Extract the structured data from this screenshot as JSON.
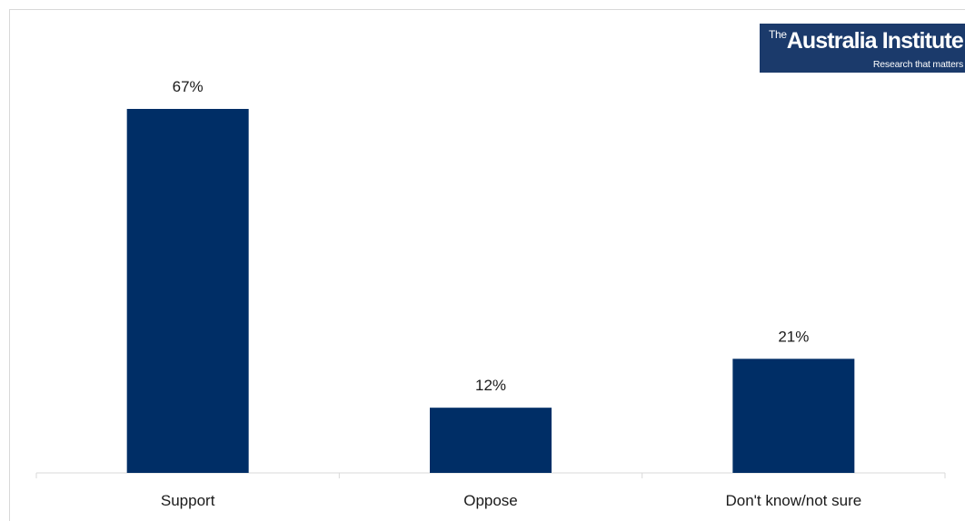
{
  "logo": {
    "prefix": "The",
    "name": "Australia Institute",
    "tagline": "Research that matters",
    "background": "#1b3a6b"
  },
  "chart_data": {
    "type": "bar",
    "categories": [
      "Support",
      "Oppose",
      "Don't know/not sure"
    ],
    "values": [
      67,
      12,
      21
    ],
    "value_labels": [
      "67%",
      "12%",
      "21%"
    ],
    "title": "",
    "xlabel": "",
    "ylabel": "",
    "ylim": [
      0,
      70
    ],
    "grid": false,
    "legend": "none",
    "bar_color": "#002e66",
    "axis_color": "#d9d9d9",
    "label_color": "#1a1a1a"
  }
}
